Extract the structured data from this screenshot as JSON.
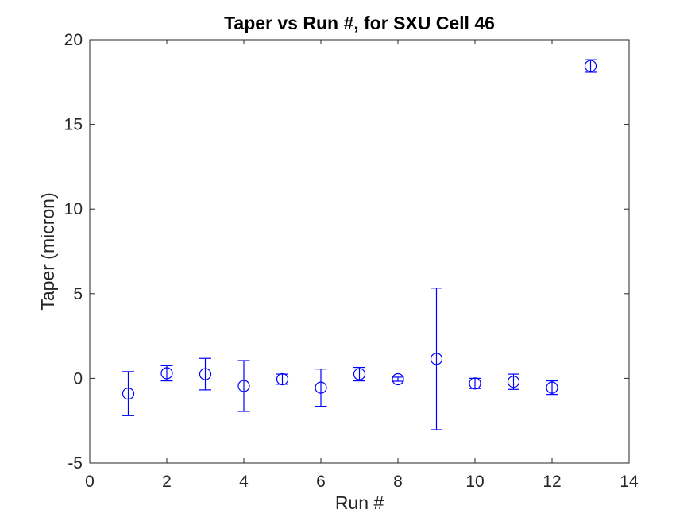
{
  "figure": {
    "background": "#ffffff",
    "axis_color": "#262626",
    "tick_label_color": "#262626",
    "title_color": "#000000"
  },
  "chart_data": {
    "type": "scatter",
    "variant": "errorbar",
    "title": "Taper vs Run #, for SXU Cell 46",
    "xlabel": "Run #",
    "ylabel": "Taper (micron)",
    "xlim": [
      0,
      14
    ],
    "ylim": [
      -5,
      20
    ],
    "xticks": [
      0,
      2,
      4,
      6,
      8,
      10,
      12,
      14
    ],
    "yticks": [
      -5,
      0,
      5,
      10,
      15,
      20
    ],
    "grid": false,
    "legend": "none",
    "box": "on",
    "tick_direction": "in",
    "series": [
      {
        "name": "Taper",
        "color": "#0000FF",
        "marker": "open-circle",
        "x": [
          1,
          2,
          3,
          4,
          5,
          6,
          7,
          8,
          9,
          10,
          11,
          12,
          13
        ],
        "y": [
          -0.9,
          0.3,
          0.25,
          -0.45,
          -0.05,
          -0.55,
          0.25,
          -0.05,
          1.15,
          -0.3,
          -0.2,
          -0.55,
          18.45
        ],
        "yerr": [
          1.3,
          0.45,
          0.93,
          1.5,
          0.3,
          1.1,
          0.4,
          0.12,
          4.18,
          0.3,
          0.45,
          0.4,
          0.37
        ]
      }
    ]
  }
}
